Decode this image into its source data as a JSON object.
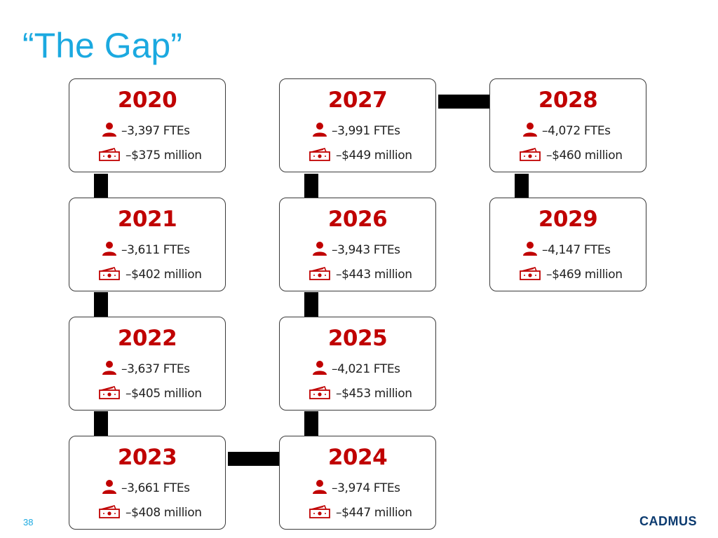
{
  "slide": {
    "title": "“The Gap”",
    "page_number": "38",
    "logo_text": "CADMUS",
    "colors": {
      "title": "#1BA9E0",
      "year": "#C00000",
      "icon": "#C00000",
      "connector": "#000000"
    }
  },
  "cards": [
    {
      "year": "2020",
      "ftes": "–3,397 FTEs",
      "money": "–$375 million"
    },
    {
      "year": "2021",
      "ftes": "–3,611 FTEs",
      "money": "–$402 million"
    },
    {
      "year": "2022",
      "ftes": "–3,637 FTEs",
      "money": "–$405 million"
    },
    {
      "year": "2023",
      "ftes": "–3,661 FTEs",
      "money": "–$408 million"
    },
    {
      "year": "2024",
      "ftes": "–3,974 FTEs",
      "money": "–$447 million"
    },
    {
      "year": "2025",
      "ftes": "–4,021 FTEs",
      "money": "–$453 million"
    },
    {
      "year": "2026",
      "ftes": "–3,943 FTEs",
      "money": "–$443 million"
    },
    {
      "year": "2027",
      "ftes": "–3,991 FTEs",
      "money": "–$449 million"
    },
    {
      "year": "2028",
      "ftes": "–4,072 FTEs",
      "money": "–$460 million"
    },
    {
      "year": "2029",
      "ftes": "–4,147 FTEs",
      "money": "–$469 million"
    }
  ],
  "icons": {
    "person": "person-icon",
    "money": "money-icon"
  }
}
